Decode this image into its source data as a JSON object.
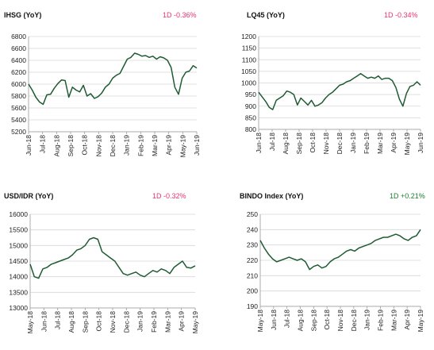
{
  "colors": {
    "line": "#1f5b33",
    "down": "#e8336d",
    "up": "#1e7b2e",
    "grid": "#d6d6d6",
    "axis": "#9a9a9a"
  },
  "panels": [
    {
      "title": "IHSG (YoY)",
      "change": "1D -0.36%",
      "change_dir": "down"
    },
    {
      "title": "LQ45 (YoY)",
      "change": "1D -0.34%",
      "change_dir": "down"
    },
    {
      "title": "USD/IDR  (YoY)",
      "change": "1D -0.32%",
      "change_dir": "down"
    },
    {
      "title": "BINDO Index (YoY)",
      "change": "1D +0.21%",
      "change_dir": "up"
    }
  ],
  "chart_data": [
    {
      "type": "line",
      "title": "IHSG (YoY)",
      "xlabel": "",
      "ylabel": "",
      "ylim": [
        5200,
        6800
      ],
      "yticks": [
        5200,
        5400,
        5600,
        5800,
        6000,
        6200,
        6400,
        6600,
        6800
      ],
      "xticks": [
        "Jun-18",
        "Jul-18",
        "Aug-18",
        "Sep-18",
        "Oct-18",
        "Nov-18",
        "Dec-18",
        "Jan-19",
        "Feb-19",
        "Mar-19",
        "Apr-19",
        "May-19",
        "Jun-19"
      ],
      "grid": true,
      "series": [
        {
          "name": "",
          "values": [
            6000,
            5900,
            5780,
            5700,
            5660,
            5820,
            5830,
            5930,
            6010,
            6070,
            6060,
            5780,
            5950,
            5900,
            5870,
            5980,
            5800,
            5840,
            5760,
            5790,
            5850,
            5950,
            6000,
            6100,
            6150,
            6180,
            6300,
            6420,
            6450,
            6520,
            6500,
            6470,
            6480,
            6450,
            6470,
            6420,
            6460,
            6440,
            6400,
            6280,
            5950,
            5830,
            6100,
            6200,
            6220,
            6310,
            6270
          ]
        }
      ]
    },
    {
      "type": "line",
      "title": "LQ45 (YoY)",
      "xlabel": "",
      "ylabel": "",
      "ylim": [
        800,
        1200
      ],
      "yticks": [
        800,
        850,
        900,
        950,
        1000,
        1050,
        1100,
        1150,
        1200
      ],
      "xticks": [
        "Jun-18",
        "Jul-18",
        "Aug-18",
        "Sep-18",
        "Oct-18",
        "Nov-18",
        "Dec-18",
        "Jan-19",
        "Feb-19",
        "Mar-19",
        "Apr-19",
        "May-19",
        "Jun-19"
      ],
      "grid": true,
      "series": [
        {
          "name": "",
          "values": [
            960,
            940,
            920,
            895,
            885,
            925,
            935,
            945,
            965,
            960,
            950,
            905,
            935,
            920,
            905,
            925,
            900,
            905,
            915,
            935,
            950,
            960,
            975,
            990,
            995,
            1005,
            1010,
            1020,
            1030,
            1040,
            1030,
            1020,
            1025,
            1020,
            1030,
            1015,
            1020,
            1020,
            1010,
            980,
            930,
            900,
            955,
            985,
            990,
            1005,
            990
          ]
        }
      ]
    },
    {
      "type": "line",
      "title": "USD/IDR  (YoY)",
      "xlabel": "",
      "ylabel": "",
      "ylim": [
        13000,
        16000
      ],
      "yticks": [
        13000,
        13500,
        14000,
        14500,
        15000,
        15500,
        16000
      ],
      "xticks": [
        "May-18",
        "Jun-18",
        "Jul-18",
        "Aug-18",
        "Sep-18",
        "Oct-18",
        "Nov-18",
        "Dec-18",
        "Jan-19",
        "Feb-19",
        "Mar-19",
        "Apr-19",
        "May-19"
      ],
      "grid": true,
      "series": [
        {
          "name": "",
          "values": [
            14400,
            14000,
            13950,
            14250,
            14300,
            14400,
            14450,
            14500,
            14550,
            14600,
            14700,
            14850,
            14900,
            15000,
            15200,
            15250,
            15200,
            14800,
            14700,
            14600,
            14500,
            14300,
            14100,
            14050,
            14100,
            14150,
            14050,
            14000,
            14100,
            14200,
            14150,
            14250,
            14200,
            14100,
            14300,
            14400,
            14500,
            14300,
            14280,
            14350
          ]
        }
      ]
    },
    {
      "type": "line",
      "title": "BINDO Index (YoY)",
      "xlabel": "",
      "ylabel": "",
      "ylim": [
        190,
        250
      ],
      "yticks": [
        190,
        200,
        210,
        220,
        230,
        240,
        250
      ],
      "xticks": [
        "May-18",
        "Jun-18",
        "Jul-18",
        "Aug-18",
        "Sep-18",
        "Oct-18",
        "Nov-18",
        "Dec-18",
        "Jan-19",
        "Feb-19",
        "Mar-19",
        "Apr-19",
        "May-19"
      ],
      "grid": true,
      "series": [
        {
          "name": "",
          "values": [
            233,
            228,
            224,
            221,
            219,
            220,
            221,
            222,
            221,
            220,
            221,
            219,
            214,
            216,
            217,
            215,
            216,
            219,
            221,
            222,
            224,
            226,
            227,
            226,
            228,
            229,
            230,
            231,
            233,
            234,
            235,
            235,
            236,
            237,
            236,
            234,
            233,
            235,
            236,
            240
          ]
        }
      ]
    }
  ]
}
